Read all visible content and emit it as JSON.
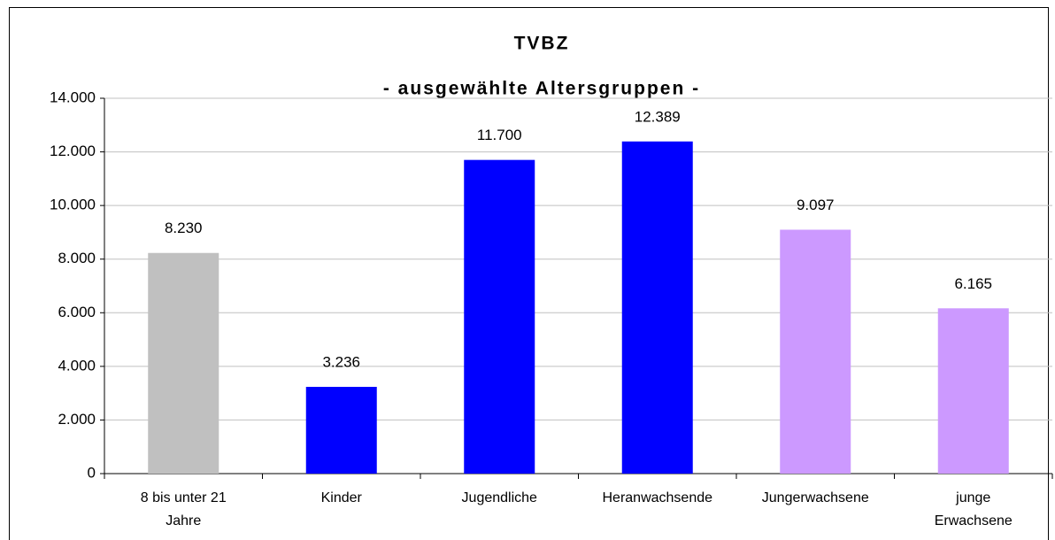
{
  "chart_data": {
    "type": "bar",
    "title": "TVBZ",
    "subtitle": "- ausgewählte Altersgruppen -",
    "categories": [
      "8 bis unter 21 Jahre",
      "Kinder",
      "Jugendliche",
      "Heranwachsende",
      "Jungerwachsene",
      "junge Erwachsene"
    ],
    "values": [
      8230,
      3236,
      11700,
      12389,
      9097,
      6165
    ],
    "value_labels": [
      "8.230",
      "3.236",
      "11.700",
      "12.389",
      "9.097",
      "6.165"
    ],
    "colors": [
      "#c0c0c0",
      "#0000ff",
      "#0000ff",
      "#0000ff",
      "#cc99ff",
      "#cc99ff"
    ],
    "ylim": [
      0,
      14000
    ],
    "yticks": [
      {
        "value": 0,
        "label": "0"
      },
      {
        "value": 2000,
        "label": "2.000"
      },
      {
        "value": 4000,
        "label": "4.000"
      },
      {
        "value": 6000,
        "label": "6.000"
      },
      {
        "value": 8000,
        "label": "8.000"
      },
      {
        "value": 10000,
        "label": "10.000"
      },
      {
        "value": 12000,
        "label": "12.000"
      },
      {
        "value": 14000,
        "label": "14.000"
      }
    ],
    "grid": true
  }
}
